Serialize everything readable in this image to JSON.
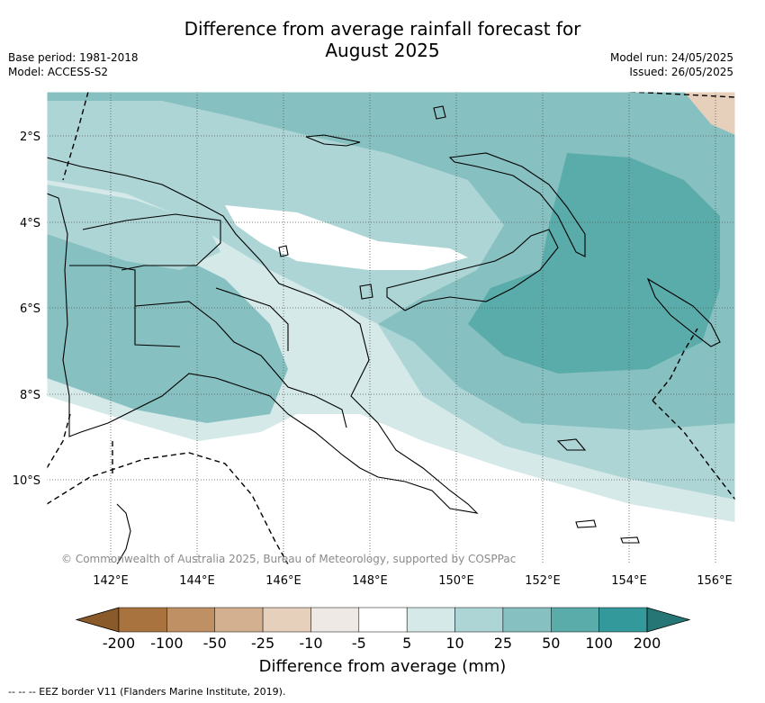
{
  "title_line1": "Difference from average rainfall forecast for",
  "title_line2": "August 2025",
  "base_period": "Base period: 1981-2018",
  "model": "Model: ACCESS-S2",
  "model_run": "Model run: 24/05/2025",
  "issued": "Issued: 26/05/2025",
  "lat_labels": [
    "2°S",
    "4°S",
    "6°S",
    "8°S",
    "10°S"
  ],
  "lon_labels": [
    "142°E",
    "144°E",
    "146°E",
    "148°E",
    "150°E",
    "152°E",
    "154°E",
    "156°E"
  ],
  "copyright": "© Commonwealth of Australia 2025, Bureau of Meteorology, supported by COSPPac",
  "colorbar": {
    "ticks": [
      "-200",
      "-100",
      "-50",
      "-25",
      "-10",
      "-5",
      "5",
      "10",
      "25",
      "50",
      "100",
      "200"
    ],
    "colors": [
      "#8b5a2b",
      "#a8733f",
      "#c09065",
      "#d3b08f",
      "#e6d0bc",
      "#efe9e5",
      "#ffffff",
      "#d4e9e8",
      "#add5d5",
      "#86c0c0",
      "#5aacab",
      "#34999a",
      "#267676"
    ],
    "label": "Difference from average (mm)"
  },
  "footer": "-- -- -- EEZ border V11 (Flanders Marine Institute, 2019)."
}
